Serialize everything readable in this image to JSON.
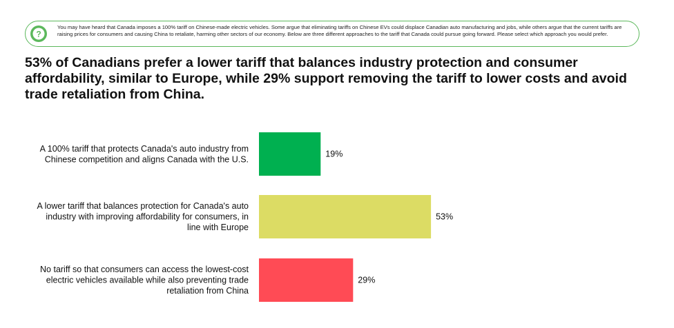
{
  "question": {
    "text": "You may have heard that Canada imposes a 100% tariff on Chinese-made electric vehicles. Some argue that eliminating tariffs on Chinese EVs could displace Canadian auto manufacturing and jobs, while others argue that the current tariffs are raising prices for consumers and causing China to retaliate, harming other sectors of our economy. Below are three different approaches to the tariff that Canada could pursue going forward. Please select which approach you would prefer.",
    "icon": "question-mark-icon",
    "accent": "#5cb85c"
  },
  "chart_data": {
    "type": "bar",
    "orientation": "horizontal",
    "title": "53% of Canadians prefer a lower tariff that balances industry protection and consumer affordability, similar to Europe, while 29% support removing the tariff to lower costs and avoid trade retaliation from China.",
    "categories": [
      [
        "A 100% tariff that protects Canada's auto industry from",
        "Chinese competition and aligns Canada with the U.S."
      ],
      [
        "A lower tariff that balances protection for Canada's auto",
        "industry with improving affordability for consumers, in",
        "line with Europe"
      ],
      [
        "No tariff so that consumers can access the lowest-cost",
        "electric vehicles available while also preventing trade",
        "retaliation from China"
      ]
    ],
    "values": [
      19,
      53,
      29
    ],
    "value_labels": [
      "19%",
      "53%",
      "29%"
    ],
    "colors": [
      "#00b050",
      "#dcdc64",
      "#ff4b55"
    ],
    "xlim": [
      0,
      100
    ],
    "grid": false,
    "legend": "none"
  }
}
